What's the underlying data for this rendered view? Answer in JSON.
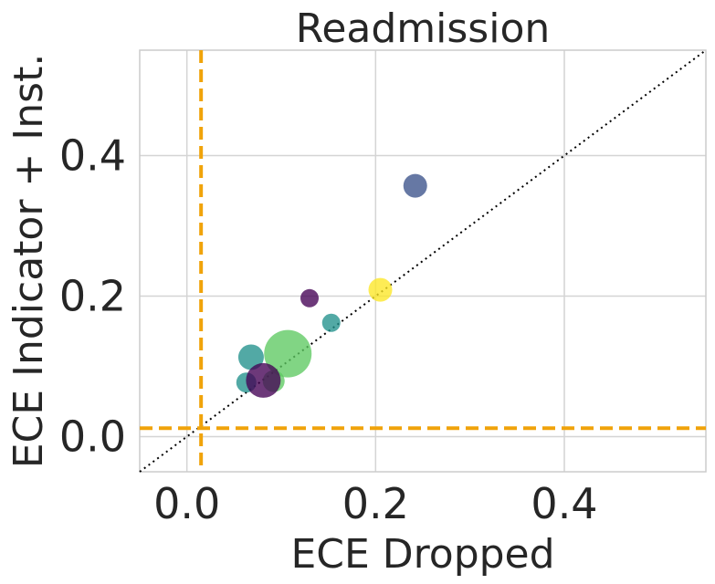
{
  "chart_data": {
    "type": "scatter",
    "title": "Readmission",
    "xlabel": "ECE Dropped",
    "ylabel": "ECE Indicator + Inst.",
    "xlim": [
      -0.05,
      0.55
    ],
    "ylim": [
      -0.05,
      0.55
    ],
    "xticks": [
      0.0,
      0.2,
      0.4
    ],
    "yticks": [
      0.0,
      0.2,
      0.4
    ],
    "xtick_labels": [
      "0.0",
      "0.2",
      "0.4"
    ],
    "ytick_labels": [
      "0.0",
      "0.2",
      "0.4"
    ],
    "grid": true,
    "reference_lines": {
      "diagonal": {
        "style": "dotted",
        "color": "#000000"
      },
      "vertical_x": 0.015,
      "horizontal_y": 0.012,
      "color": "#f0a30a",
      "style": "dashed"
    },
    "points": [
      {
        "x": 0.242,
        "y": 0.357,
        "size": 13,
        "color": "#3b528b"
      },
      {
        "x": 0.205,
        "y": 0.209,
        "size": 13,
        "color": "#fde725"
      },
      {
        "x": 0.13,
        "y": 0.197,
        "size": 10,
        "color": "#440154"
      },
      {
        "x": 0.153,
        "y": 0.162,
        "size": 10,
        "color": "#21918c"
      },
      {
        "x": 0.107,
        "y": 0.118,
        "size": 26,
        "color": "#5ec962"
      },
      {
        "x": 0.068,
        "y": 0.113,
        "size": 14,
        "color": "#21918c"
      },
      {
        "x": 0.063,
        "y": 0.077,
        "size": 11,
        "color": "#21918c"
      },
      {
        "x": 0.092,
        "y": 0.079,
        "size": 12,
        "color": "#5ec962"
      },
      {
        "x": 0.081,
        "y": 0.08,
        "size": 19,
        "color": "#440154"
      }
    ]
  }
}
